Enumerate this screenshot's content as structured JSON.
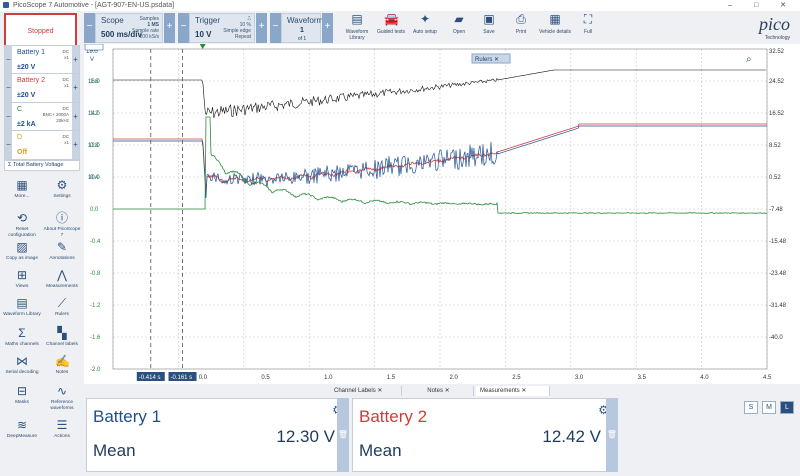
{
  "window": {
    "title": "PicoScope 7 Automotive - [AGT-907-EN-US.psdata]",
    "controls": "–  □  ✕"
  },
  "toolbar": {
    "stop_label": "Stopped",
    "scope": {
      "label": "Scope",
      "value": "500 ms/div",
      "samples_label": "Samples",
      "samples": "1 MS",
      "rate_label": "Sample rate",
      "rate": "200 kS/s"
    },
    "trigger": {
      "label": "Trigger",
      "value": "10 V",
      "percent": "10 %",
      "mode": "Simple edge",
      "repeat": "Repeat"
    },
    "waveform": {
      "label": "Waveform",
      "value": "1",
      "of": "of 1"
    },
    "tools": [
      {
        "label": "Waveform Library",
        "icon": "library-icon"
      },
      {
        "label": "Guided tests",
        "icon": "car-icon"
      },
      {
        "label": "Auto setup",
        "icon": "wand-icon"
      },
      {
        "label": "Open",
        "icon": "folder-icon"
      },
      {
        "label": "Save",
        "icon": "save-icon"
      },
      {
        "label": "Print",
        "icon": "print-icon"
      },
      {
        "label": "Vehicle details",
        "icon": "vehicle-icon"
      },
      {
        "label": "Full",
        "icon": "fullscreen-icon"
      }
    ],
    "logo": "pico",
    "logo_sub": "Technology"
  },
  "channels": [
    {
      "name": "Battery 1",
      "range": "±20 V",
      "meta1": "DC",
      "meta2": "x1",
      "color": "#1e4f8f"
    },
    {
      "name": "Battery 2",
      "range": "±20 V",
      "meta1": "DC",
      "meta2": "x1",
      "color": "#d13b3b"
    },
    {
      "name": "C",
      "range": "±2 kA",
      "meta1": "DC",
      "meta2": "BNC+ 2000A",
      "meta3": "20kHz",
      "color": "#2a8a3a"
    },
    {
      "name": "D",
      "range": "Off",
      "meta1": "DC",
      "meta2": "x1",
      "color": "#d4a21a"
    }
  ],
  "total_battery": "Total Battery Voltage",
  "side_tools": [
    {
      "label": "More...",
      "icon": "more-icon"
    },
    {
      "label": "Settings",
      "icon": "gear-icon"
    },
    {
      "label": "Reset configuration",
      "icon": "reset-icon"
    },
    {
      "label": "About PicoScope 7",
      "icon": "info-icon"
    },
    {
      "label": "Copy as image",
      "icon": "image-icon"
    },
    {
      "label": "Annotations",
      "icon": "annotation-icon"
    },
    {
      "label": "Views",
      "icon": "views-icon"
    },
    {
      "label": "Measurements",
      "icon": "measure-icon"
    },
    {
      "label": "Waveform Library",
      "icon": "library-icon"
    },
    {
      "label": "Rulers",
      "icon": "ruler-icon"
    },
    {
      "label": "Maths channels",
      "icon": "sigma-icon"
    },
    {
      "label": "Channel labels",
      "icon": "labels-icon"
    },
    {
      "label": "Serial decoding",
      "icon": "serial-icon"
    },
    {
      "label": "Notes",
      "icon": "notes-icon"
    },
    {
      "label": "Masks",
      "icon": "masks-icon"
    },
    {
      "label": "Reference waveforms",
      "icon": "reference-icon"
    },
    {
      "label": "DeepMeasure",
      "icon": "deepmeasure-icon"
    },
    {
      "label": "Actions",
      "icon": "actions-icon"
    }
  ],
  "scope_view": {
    "rulers_label": "Rulers",
    "left_axis_top": "18.0",
    "left_axis_unit_top": "V",
    "left_ticks_a": [
      "16.0",
      "14.0",
      "12.0",
      "10.0"
    ],
    "left_axis_unit_b": "kA",
    "left_ticks_b": [
      "2.0",
      "1.6",
      "1.2",
      "0.8",
      "0.4",
      "0.0",
      "-0.4",
      "-0.8",
      "-1.2",
      "-1.6",
      "-2.0"
    ],
    "right_axis_top": "32.52",
    "right_ticks": [
      "24.52",
      "16.52",
      "8.52",
      "0.52",
      "-7.48",
      "-15.48",
      "-23.48",
      "-31.48",
      "-40.0"
    ],
    "x_ticks": [
      "-0.414 s",
      "-0.161 s",
      "0.0",
      "0.5",
      "1.0",
      "1.5",
      "2.0",
      "2.5",
      "3.0",
      "3.5",
      "4.0",
      "4.5"
    ]
  },
  "tabs": [
    "Channel Labels",
    "Notes",
    "Measurements"
  ],
  "measurements": [
    {
      "name": "Battery 1",
      "type": "Mean",
      "value": "12.30 V",
      "color": "#1e4f8f"
    },
    {
      "name": "Battery 2",
      "type": "Mean",
      "value": "12.42 V",
      "color": "#d13b3b"
    }
  ],
  "size_buttons": [
    "S",
    "M",
    "L"
  ]
}
